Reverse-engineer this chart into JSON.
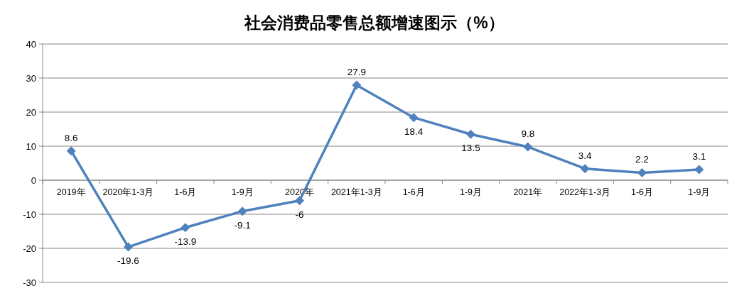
{
  "chart_data": {
    "type": "line",
    "title": "社会消费品零售总额增速图示（%）",
    "categories": [
      "2019年",
      "2020年1-3月",
      "1-6月",
      "1-9月",
      "2020年",
      "2021年1-3月",
      "1-6月",
      "1-9月",
      "2021年",
      "2022年1-3月",
      "1-6月",
      "1-9月"
    ],
    "series": [
      {
        "color": "#4f81bd",
        "values": [
          8.6,
          -19.6,
          -13.9,
          -9.1,
          -6,
          27.9,
          18.4,
          13.5,
          9.8,
          3.4,
          2.2,
          3.1
        ]
      }
    ],
    "ylim": [
      -30,
      40
    ],
    "yticks": [
      -30,
      -20,
      -10,
      0,
      10,
      20,
      30,
      40
    ],
    "grid": "y",
    "marker": "diamond",
    "line_style": "solid",
    "data_labels": true
  }
}
